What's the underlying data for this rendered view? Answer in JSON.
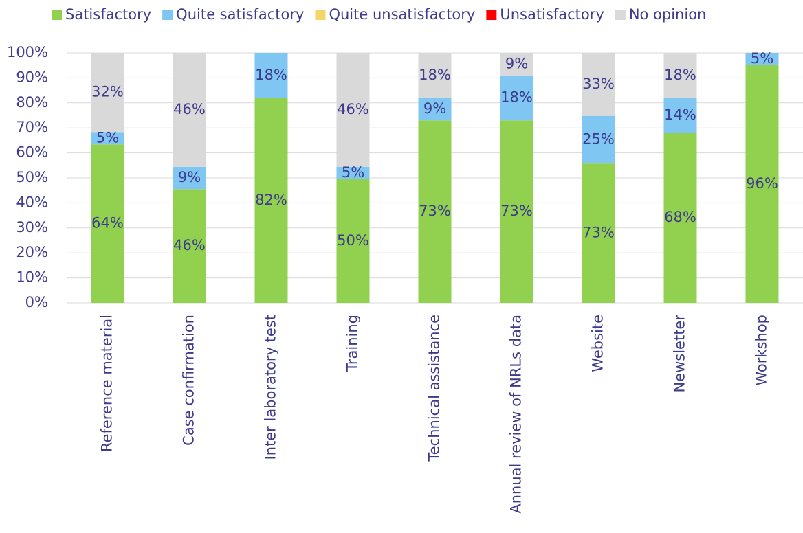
{
  "chart_data": {
    "type": "bar",
    "stack": "percent",
    "categories": [
      "Reference material",
      "Case confirmation",
      "Inter laboratory test",
      "Training",
      "Technical assistance",
      "Annual review of NRLs data",
      "Website",
      "Newsletter",
      "Workshop"
    ],
    "series": [
      {
        "name": "Satisfactory",
        "color": "#92d050",
        "values": [
          64,
          46,
          82,
          50,
          73,
          73,
          73,
          68,
          96
        ],
        "value_labels": [
          "64%",
          "46%",
          "82%",
          "50%",
          "73%",
          "73%",
          "73%",
          "68%",
          "96%"
        ]
      },
      {
        "name": "Quite satisfactory",
        "color": "#7fc6f2",
        "values": [
          5,
          9,
          18,
          5,
          9,
          18,
          25,
          14,
          5
        ],
        "value_labels": [
          "5%",
          "9%",
          "18%",
          "5%",
          "9%",
          "18%",
          "25%",
          "14%",
          "5%"
        ]
      },
      {
        "name": "Quite unsatisfactory",
        "color": "#f5d468",
        "values": [
          0,
          0,
          0,
          0,
          0,
          0,
          0,
          0,
          0
        ],
        "value_labels": [
          null,
          null,
          null,
          null,
          null,
          null,
          null,
          null,
          null
        ]
      },
      {
        "name": "Unsatisfactory",
        "color": "#ff0000",
        "values": [
          0,
          0,
          0,
          0,
          0,
          0,
          0,
          0,
          0
        ],
        "value_labels": [
          null,
          null,
          null,
          null,
          null,
          null,
          null,
          null,
          null
        ]
      },
      {
        "name": "No opinion",
        "color": "#d9d9d9",
        "values": [
          32,
          46,
          0,
          46,
          18,
          9,
          33,
          18,
          0
        ],
        "value_labels": [
          "32%",
          "46%",
          null,
          "46%",
          "18%",
          "9%",
          "33%",
          "18%",
          null
        ]
      }
    ],
    "ylim": [
      0,
      100
    ],
    "yticks": [
      {
        "value": 0,
        "label": "0%"
      },
      {
        "value": 10,
        "label": "10%"
      },
      {
        "value": 20,
        "label": "20%"
      },
      {
        "value": 30,
        "label": "30%"
      },
      {
        "value": 40,
        "label": "40%"
      },
      {
        "value": 50,
        "label": "50%"
      },
      {
        "value": 60,
        "label": "60%"
      },
      {
        "value": 70,
        "label": "70%"
      },
      {
        "value": 80,
        "label": "80%"
      },
      {
        "value": 90,
        "label": "90%"
      },
      {
        "value": 100,
        "label": "100%"
      }
    ],
    "grid": true,
    "legend": "top"
  }
}
